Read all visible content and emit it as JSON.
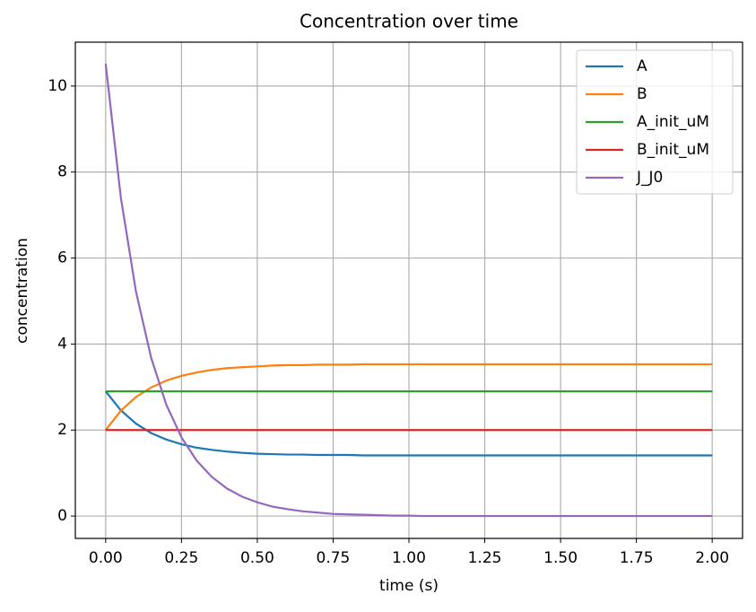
{
  "chart_data": {
    "type": "line",
    "title": "Concentration over time",
    "xlabel": "time (s)",
    "ylabel": "concentration",
    "x": [
      0,
      0.05,
      0.1,
      0.15,
      0.2,
      0.25,
      0.3,
      0.35,
      0.4,
      0.45,
      0.5,
      0.55,
      0.6,
      0.65,
      0.7,
      0.75,
      0.8,
      0.85,
      0.9,
      0.95,
      1,
      1.05,
      1.1,
      1.15,
      1.2,
      1.25,
      1.3,
      1.35,
      1.4,
      1.45,
      1.5,
      1.55,
      1.6,
      1.65,
      1.7,
      1.75,
      1.8,
      1.85,
      1.9,
      1.95,
      2
    ],
    "series": [
      {
        "name": "A",
        "color": "#1f77b4",
        "values": [
          2.9,
          2.46,
          2.15,
          1.93,
          1.78,
          1.67,
          1.59,
          1.54,
          1.5,
          1.47,
          1.45,
          1.44,
          1.43,
          1.43,
          1.42,
          1.42,
          1.42,
          1.41,
          1.41,
          1.41,
          1.41,
          1.41,
          1.41,
          1.41,
          1.41,
          1.41,
          1.41,
          1.41,
          1.41,
          1.41,
          1.41,
          1.41,
          1.41,
          1.41,
          1.41,
          1.41,
          1.41,
          1.41,
          1.41,
          1.41,
          1.41
        ]
      },
      {
        "name": "B",
        "color": "#ff7f0e",
        "values": [
          2,
          2.45,
          2.77,
          2.99,
          3.15,
          3.26,
          3.34,
          3.4,
          3.44,
          3.46,
          3.48,
          3.5,
          3.51,
          3.51,
          3.52,
          3.52,
          3.52,
          3.53,
          3.53,
          3.53,
          3.53,
          3.53,
          3.53,
          3.53,
          3.53,
          3.53,
          3.53,
          3.53,
          3.53,
          3.53,
          3.53,
          3.53,
          3.53,
          3.53,
          3.53,
          3.53,
          3.53,
          3.53,
          3.53,
          3.53,
          3.53
        ]
      },
      {
        "name": "A_init_uM",
        "color": "#2ca02c",
        "values": [
          2.9,
          2.9,
          2.9,
          2.9,
          2.9,
          2.9,
          2.9,
          2.9,
          2.9,
          2.9,
          2.9,
          2.9,
          2.9,
          2.9,
          2.9,
          2.9,
          2.9,
          2.9,
          2.9,
          2.9,
          2.9,
          2.9,
          2.9,
          2.9,
          2.9,
          2.9,
          2.9,
          2.9,
          2.9,
          2.9,
          2.9,
          2.9,
          2.9,
          2.9,
          2.9,
          2.9,
          2.9,
          2.9,
          2.9,
          2.9,
          2.9
        ]
      },
      {
        "name": "B_init_uM",
        "color": "#d62728",
        "values": [
          2,
          2,
          2,
          2,
          2,
          2,
          2,
          2,
          2,
          2,
          2,
          2,
          2,
          2,
          2,
          2,
          2,
          2,
          2,
          2,
          2,
          2,
          2,
          2,
          2,
          2,
          2,
          2,
          2,
          2,
          2,
          2,
          2,
          2,
          2,
          2,
          2,
          2,
          2,
          2,
          2
        ]
      },
      {
        "name": "J_J0",
        "color": "#9467bd",
        "values": [
          10.52,
          7.41,
          5.22,
          3.68,
          2.59,
          1.83,
          1.29,
          0.91,
          0.64,
          0.45,
          0.32,
          0.22,
          0.16,
          0.11,
          0.08,
          0.05,
          0.04,
          0.03,
          0.02,
          0.01,
          0.01,
          0,
          0,
          0,
          0,
          0,
          0,
          0,
          0,
          0,
          0,
          0,
          0,
          0,
          0,
          0,
          0,
          0,
          0,
          0,
          0
        ]
      }
    ],
    "xlim": [
      -0.1,
      2.1
    ],
    "ylim": [
      -0.52,
      11.02
    ],
    "xticks": [
      {
        "value": 0,
        "label": "0.00"
      },
      {
        "value": 0.25,
        "label": "0.25"
      },
      {
        "value": 0.5,
        "label": "0.50"
      },
      {
        "value": 0.75,
        "label": "0.75"
      },
      {
        "value": 1,
        "label": "1.00"
      },
      {
        "value": 1.25,
        "label": "1.25"
      },
      {
        "value": 1.5,
        "label": "1.50"
      },
      {
        "value": 1.75,
        "label": "1.75"
      },
      {
        "value": 2,
        "label": "2.00"
      }
    ],
    "yticks": [
      0,
      2,
      4,
      6,
      8,
      10
    ],
    "grid": true,
    "legend": "upper-right"
  }
}
